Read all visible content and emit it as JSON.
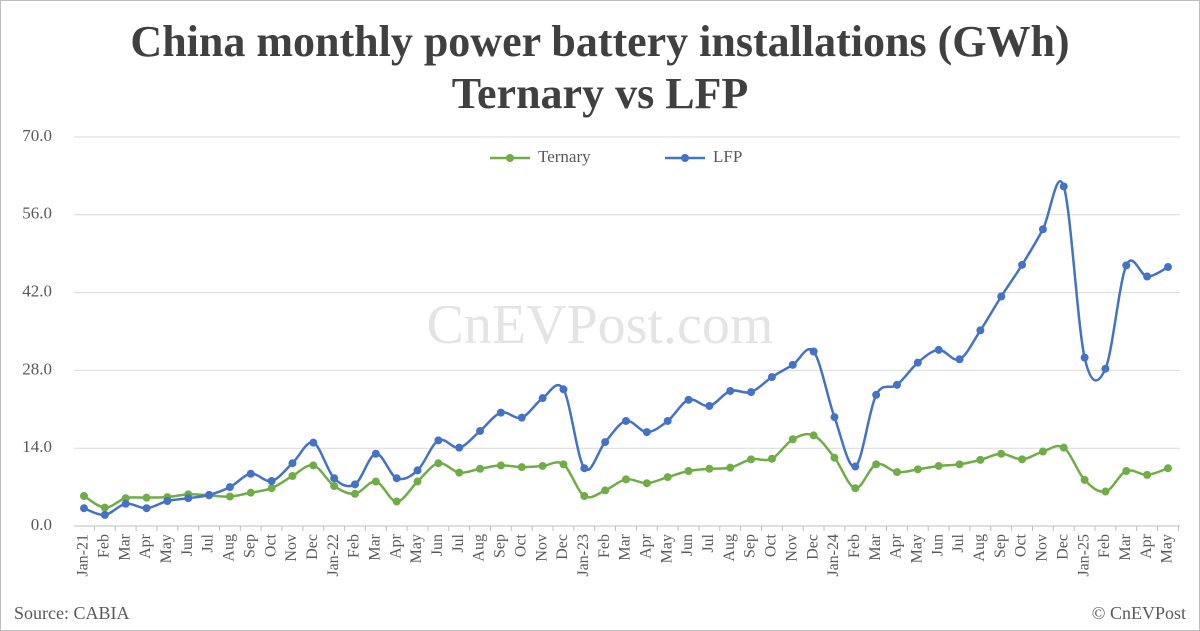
{
  "chart_data": {
    "type": "line",
    "title": "China monthly power battery installations (GWh)",
    "subtitle": "Ternary vs LFP",
    "watermark": "CnEVPost.com",
    "source": "Source: CABIA",
    "credit": "© CnEVPost",
    "categories": [
      "Jan-21",
      "Feb",
      "Mar",
      "Apr",
      "May",
      "Jun",
      "Jul",
      "Aug",
      "Sep",
      "Oct",
      "Nov",
      "Dec",
      "Jan-22",
      "Feb",
      "Mar",
      "Apr",
      "May",
      "Jun",
      "Jul",
      "Aug",
      "Sep",
      "Oct",
      "Nov",
      "Dec",
      "Jan-23",
      "Feb",
      "Mar",
      "Apr",
      "May",
      "Jun",
      "Jul",
      "Aug",
      "Sep",
      "Oct",
      "Nov",
      "Dec",
      "Jan-24",
      "Feb",
      "Mar",
      "Apr",
      "May",
      "Jun",
      "Jul",
      "Aug",
      "Sep",
      "Oct",
      "Nov",
      "Dec",
      "Jan-25",
      "Feb",
      "Mar",
      "Apr",
      "May"
    ],
    "series": [
      {
        "name": "Ternary",
        "color": "#70ad47",
        "values": [
          5.4,
          3.3,
          5.0,
          5.1,
          5.2,
          5.7,
          5.5,
          5.3,
          6.0,
          6.8,
          9.0,
          10.9,
          7.2,
          5.8,
          8.0,
          4.4,
          8.0,
          11.3,
          9.6,
          10.3,
          10.9,
          10.6,
          10.8,
          11.1,
          5.4,
          6.4,
          8.4,
          7.7,
          8.8,
          9.9,
          10.3,
          10.5,
          12.0,
          12.1,
          15.6,
          16.3,
          12.3,
          6.8,
          11.1,
          9.7,
          10.2,
          10.8,
          11.1,
          11.9,
          13.0,
          12.0,
          13.4,
          14.1,
          8.3,
          6.2,
          9.9,
          9.2,
          10.4
        ]
      },
      {
        "name": "LFP",
        "color": "#4472c4",
        "values": [
          3.2,
          2.0,
          4.0,
          3.2,
          4.5,
          5.0,
          5.6,
          7.0,
          9.4,
          8.1,
          11.3,
          15.0,
          8.6,
          7.5,
          13.0,
          8.6,
          10.0,
          15.4,
          14.1,
          17.1,
          20.4,
          19.5,
          23.0,
          24.6,
          10.4,
          15.1,
          18.9,
          16.9,
          18.9,
          22.7,
          21.6,
          24.3,
          24.1,
          26.8,
          29.0,
          31.4,
          19.6,
          10.7,
          23.6,
          25.4,
          29.4,
          31.7,
          30.0,
          35.2,
          41.3,
          47.0,
          53.4,
          61.1,
          30.3,
          28.3,
          46.9,
          44.9,
          46.6
        ]
      }
    ],
    "ylim": [
      0,
      70
    ],
    "yticks": [
      {
        "value": 0,
        "label": "0.0"
      },
      {
        "value": 14,
        "label": "14.0"
      },
      {
        "value": 28,
        "label": "28.0"
      },
      {
        "value": 42,
        "label": "42.0"
      },
      {
        "value": 56,
        "label": "56.0"
      },
      {
        "value": 70,
        "label": "70.0"
      }
    ],
    "grid": true,
    "smooth": true,
    "legend": "top"
  }
}
